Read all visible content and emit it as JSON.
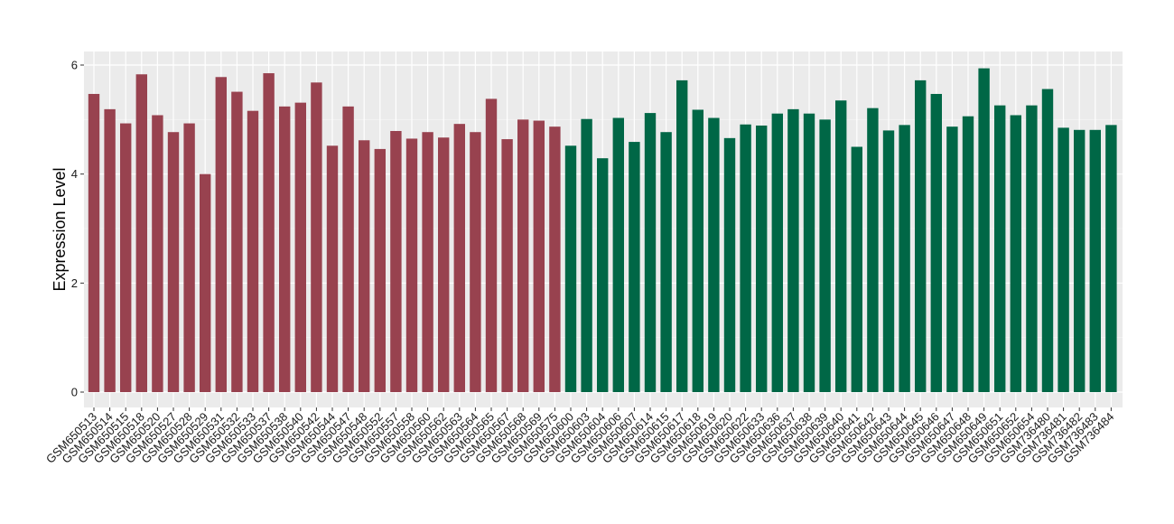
{
  "colors": {
    "panel": "#EBEBEB",
    "grid_major": "#FFFFFF",
    "group_1": "#98424F",
    "group_2": "#006746"
  },
  "chart_data": {
    "type": "bar",
    "title": "",
    "xlabel": "",
    "ylabel": "Expression Level",
    "ylim": [
      0,
      6.3
    ],
    "yticks": [
      0,
      2,
      4,
      6
    ],
    "grid": true,
    "legend": "none",
    "categories": [
      "GSM650513",
      "GSM650514",
      "GSM650515",
      "GSM650518",
      "GSM650520",
      "GSM650527",
      "GSM650528",
      "GSM650529",
      "GSM650531",
      "GSM650532",
      "GSM650533",
      "GSM650537",
      "GSM650538",
      "GSM650540",
      "GSM650542",
      "GSM650544",
      "GSM650547",
      "GSM650548",
      "GSM650552",
      "GSM650557",
      "GSM650558",
      "GSM650560",
      "GSM650562",
      "GSM650563",
      "GSM650564",
      "GSM650565",
      "GSM650567",
      "GSM650568",
      "GSM650569",
      "GSM650575",
      "GSM650600",
      "GSM650603",
      "GSM650604",
      "GSM650606",
      "GSM650607",
      "GSM650614",
      "GSM650615",
      "GSM650617",
      "GSM650618",
      "GSM650619",
      "GSM650620",
      "GSM650622",
      "GSM650633",
      "GSM650636",
      "GSM650637",
      "GSM650638",
      "GSM650639",
      "GSM650640",
      "GSM650641",
      "GSM650642",
      "GSM650643",
      "GSM650644",
      "GSM650645",
      "GSM650646",
      "GSM650647",
      "GSM650648",
      "GSM650649",
      "GSM650651",
      "GSM650652",
      "GSM650654",
      "GSM736480",
      "GSM736481",
      "GSM736482",
      "GSM736483",
      "GSM736484"
    ],
    "values": [
      5.47,
      5.19,
      4.93,
      5.83,
      5.08,
      4.77,
      4.93,
      4.0,
      5.78,
      5.51,
      5.16,
      5.85,
      5.24,
      5.31,
      5.68,
      4.52,
      5.24,
      4.62,
      4.46,
      4.79,
      4.65,
      4.77,
      4.67,
      4.92,
      4.77,
      5.38,
      4.64,
      5.0,
      4.98,
      4.87,
      4.52,
      5.01,
      4.29,
      5.03,
      4.59,
      5.12,
      4.77,
      5.72,
      5.18,
      5.03,
      4.66,
      4.91,
      4.89,
      5.11,
      5.19,
      5.11,
      5.0,
      5.35,
      4.5,
      5.21,
      4.8,
      4.9,
      5.72,
      5.47,
      4.87,
      5.06,
      5.94,
      5.26,
      5.08,
      5.26,
      5.56,
      4.85,
      4.81,
      4.81,
      4.9
    ],
    "groups": [
      1,
      1,
      1,
      1,
      1,
      1,
      1,
      1,
      1,
      1,
      1,
      1,
      1,
      1,
      1,
      1,
      1,
      1,
      1,
      1,
      1,
      1,
      1,
      1,
      1,
      1,
      1,
      1,
      1,
      1,
      2,
      2,
      2,
      2,
      2,
      2,
      2,
      2,
      2,
      2,
      2,
      2,
      2,
      2,
      2,
      2,
      2,
      2,
      2,
      2,
      2,
      2,
      2,
      2,
      2,
      2,
      2,
      2,
      2,
      2,
      2,
      2,
      2,
      2,
      2
    ]
  }
}
